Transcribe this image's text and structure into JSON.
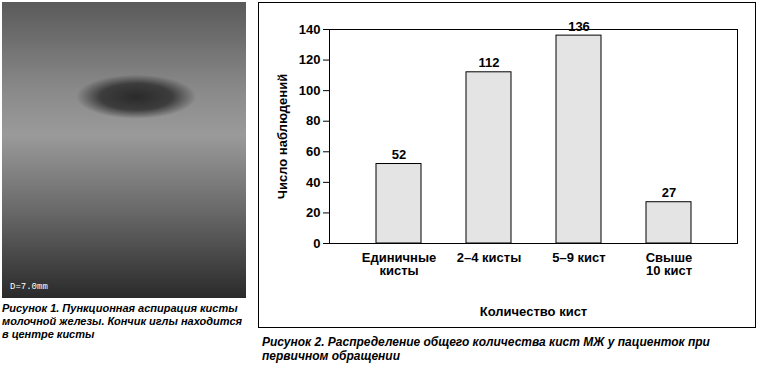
{
  "figure_1": {
    "caption": "Рисунок 1. Пункционная аспирация кисты молочной железы. Кончик иглы находится в центре кисты",
    "image_label": "D=7.0mm"
  },
  "chart_data": {
    "type": "bar",
    "title": "Рисунок 2. Распределение общего количества кист МЖ у пациенток при первичном обращении",
    "x_label": "Количество кист",
    "y_label": "Число наблюдений",
    "categories": [
      "Единичные\nкисты",
      "2–4 кисты",
      "5–9 кист",
      "Свыше\n10 кист"
    ],
    "values": [
      52,
      112,
      136,
      27
    ],
    "color": "#e4e4e4",
    "ylim": [
      0,
      140
    ],
    "yticks": [
      0,
      20,
      40,
      60,
      80,
      100,
      120,
      140
    ],
    "grid": false,
    "data_labels": true
  }
}
